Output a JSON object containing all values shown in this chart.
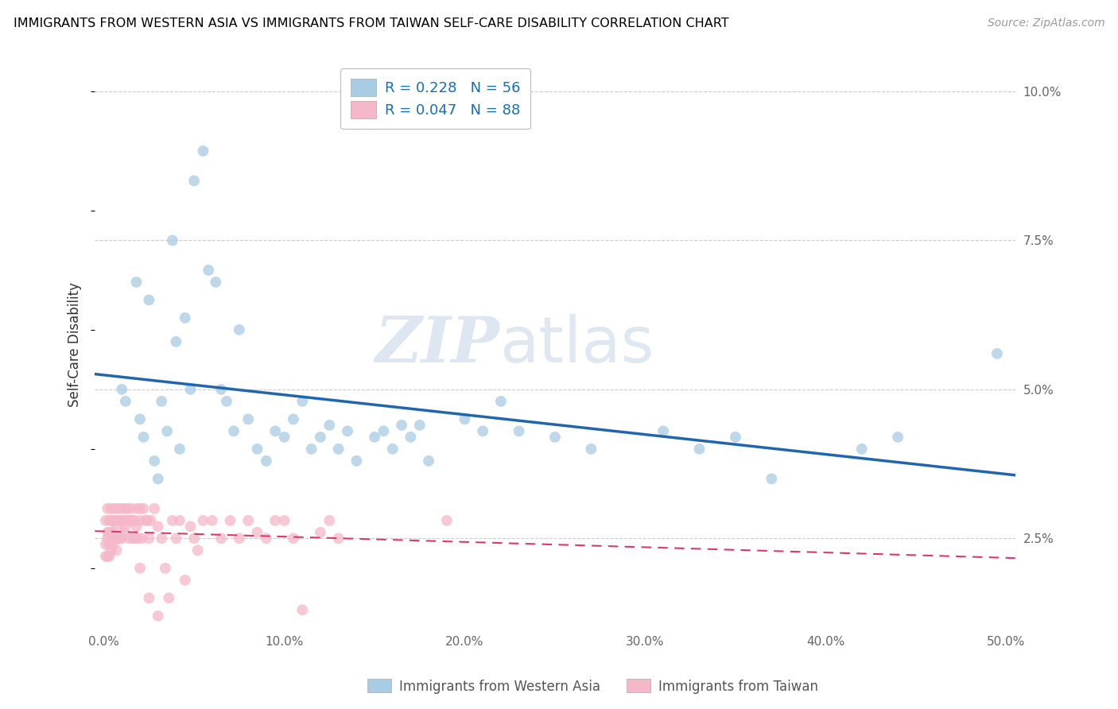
{
  "title": "IMMIGRANTS FROM WESTERN ASIA VS IMMIGRANTS FROM TAIWAN SELF-CARE DISABILITY CORRELATION CHART",
  "source": "Source: ZipAtlas.com",
  "ylabel": "Self-Care Disability",
  "xlim": [
    -0.005,
    0.505
  ],
  "ylim": [
    0.01,
    0.105
  ],
  "blue_R": "0.228",
  "blue_N": "56",
  "pink_R": "0.047",
  "pink_N": "88",
  "blue_color": "#a8cce4",
  "pink_color": "#f4b8c8",
  "blue_line_color": "#2166ac",
  "pink_line_color": "#d63a6e",
  "watermark_zip": "ZIP",
  "watermark_atlas": "atlas",
  "blue_scatter_x": [
    0.01,
    0.012,
    0.018,
    0.02,
    0.022,
    0.025,
    0.028,
    0.03,
    0.032,
    0.035,
    0.038,
    0.04,
    0.042,
    0.045,
    0.048,
    0.05,
    0.055,
    0.058,
    0.062,
    0.065,
    0.068,
    0.072,
    0.075,
    0.08,
    0.085,
    0.09,
    0.095,
    0.1,
    0.105,
    0.11,
    0.115,
    0.12,
    0.125,
    0.13,
    0.135,
    0.14,
    0.15,
    0.155,
    0.16,
    0.165,
    0.17,
    0.175,
    0.18,
    0.2,
    0.21,
    0.22,
    0.23,
    0.25,
    0.27,
    0.31,
    0.33,
    0.35,
    0.37,
    0.42,
    0.44,
    0.495
  ],
  "blue_scatter_y": [
    0.05,
    0.048,
    0.068,
    0.045,
    0.042,
    0.065,
    0.038,
    0.035,
    0.048,
    0.043,
    0.075,
    0.058,
    0.04,
    0.062,
    0.05,
    0.085,
    0.09,
    0.07,
    0.068,
    0.05,
    0.048,
    0.043,
    0.06,
    0.045,
    0.04,
    0.038,
    0.043,
    0.042,
    0.045,
    0.048,
    0.04,
    0.042,
    0.044,
    0.04,
    0.043,
    0.038,
    0.042,
    0.043,
    0.04,
    0.044,
    0.042,
    0.044,
    0.038,
    0.045,
    0.043,
    0.048,
    0.043,
    0.042,
    0.04,
    0.043,
    0.04,
    0.042,
    0.035,
    0.04,
    0.042,
    0.056
  ],
  "pink_scatter_x": [
    0.001,
    0.001,
    0.001,
    0.002,
    0.002,
    0.002,
    0.002,
    0.003,
    0.003,
    0.003,
    0.003,
    0.004,
    0.004,
    0.004,
    0.004,
    0.005,
    0.005,
    0.005,
    0.006,
    0.006,
    0.006,
    0.007,
    0.007,
    0.007,
    0.008,
    0.008,
    0.008,
    0.009,
    0.009,
    0.01,
    0.01,
    0.01,
    0.011,
    0.011,
    0.012,
    0.012,
    0.013,
    0.013,
    0.014,
    0.014,
    0.015,
    0.015,
    0.016,
    0.016,
    0.017,
    0.017,
    0.018,
    0.018,
    0.019,
    0.02,
    0.02,
    0.021,
    0.022,
    0.023,
    0.024,
    0.025,
    0.026,
    0.028,
    0.03,
    0.032,
    0.034,
    0.036,
    0.038,
    0.04,
    0.042,
    0.045,
    0.048,
    0.05,
    0.052,
    0.055,
    0.06,
    0.065,
    0.07,
    0.075,
    0.08,
    0.085,
    0.09,
    0.095,
    0.1,
    0.105,
    0.11,
    0.12,
    0.125,
    0.13,
    0.19,
    0.02,
    0.025,
    0.03
  ],
  "pink_scatter_y": [
    0.028,
    0.024,
    0.022,
    0.03,
    0.026,
    0.025,
    0.022,
    0.028,
    0.026,
    0.024,
    0.022,
    0.03,
    0.028,
    0.025,
    0.023,
    0.028,
    0.026,
    0.024,
    0.03,
    0.028,
    0.025,
    0.027,
    0.025,
    0.023,
    0.03,
    0.028,
    0.025,
    0.028,
    0.025,
    0.03,
    0.028,
    0.025,
    0.028,
    0.026,
    0.03,
    0.027,
    0.03,
    0.028,
    0.028,
    0.025,
    0.03,
    0.028,
    0.028,
    0.025,
    0.028,
    0.025,
    0.03,
    0.027,
    0.025,
    0.03,
    0.028,
    0.025,
    0.03,
    0.028,
    0.028,
    0.025,
    0.028,
    0.03,
    0.027,
    0.025,
    0.02,
    0.015,
    0.028,
    0.025,
    0.028,
    0.018,
    0.027,
    0.025,
    0.023,
    0.028,
    0.028,
    0.025,
    0.028,
    0.025,
    0.028,
    0.026,
    0.025,
    0.028,
    0.028,
    0.025,
    0.013,
    0.026,
    0.028,
    0.025,
    0.028,
    0.02,
    0.015,
    0.012
  ]
}
